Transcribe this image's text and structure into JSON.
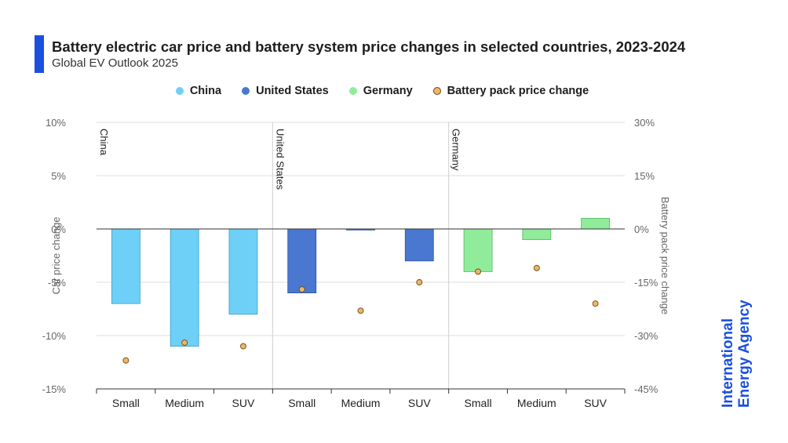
{
  "header": {
    "title": "Battery electric car price and battery system price changes in selected countries, 2023-2024",
    "subtitle": "Global EV Outlook 2025"
  },
  "legend": [
    {
      "label": "China",
      "color": "#6fd0f7",
      "shape": "circle"
    },
    {
      "label": "United States",
      "color": "#4a78d0",
      "shape": "circle"
    },
    {
      "label": "Germany",
      "color": "#90ec9b",
      "shape": "circle"
    },
    {
      "label": "Battery pack price change",
      "color": "#f0b566",
      "shape": "circle"
    }
  ],
  "brand": {
    "line1": "International",
    "line2": "Energy Agency",
    "color": "#1a4fe0"
  },
  "chart_data": {
    "type": "bar",
    "title": "Battery electric car price and battery system price changes in selected countries, 2023-2024",
    "ylabel": "Car price change",
    "y2label": "Battery pack price change",
    "ylim": [
      -15,
      10
    ],
    "y2lim": [
      -45,
      30
    ],
    "yticks": [
      "10%",
      "5%",
      "0%",
      "-5%",
      "-10%",
      "-15%"
    ],
    "y2ticks": [
      "30%",
      "15%",
      "0%",
      "-15%",
      "-30%",
      "-45%"
    ],
    "grid": true,
    "legend_position": "top-center",
    "groups": [
      {
        "name": "China",
        "color": "#6fd0f7",
        "border": "#3a9fca",
        "categories": [
          "Small",
          "Medium",
          "SUV"
        ],
        "car_price_change": [
          -7,
          -11,
          -8
        ],
        "battery_pack_price_change": [
          -37,
          -32,
          -33
        ]
      },
      {
        "name": "United States",
        "color": "#4a78d0",
        "border": "#2c52a0",
        "categories": [
          "Small",
          "Medium",
          "SUV"
        ],
        "car_price_change": [
          -6,
          -0.1,
          -3
        ],
        "battery_pack_price_change": [
          -17,
          -23,
          -15
        ]
      },
      {
        "name": "Germany",
        "color": "#90ec9b",
        "border": "#52b85e",
        "categories": [
          "Small",
          "Medium",
          "SUV"
        ],
        "car_price_change": [
          -4,
          -1,
          1
        ],
        "battery_pack_price_change": [
          -12,
          -11,
          -21
        ]
      }
    ],
    "marker_color": "#f0b566"
  }
}
